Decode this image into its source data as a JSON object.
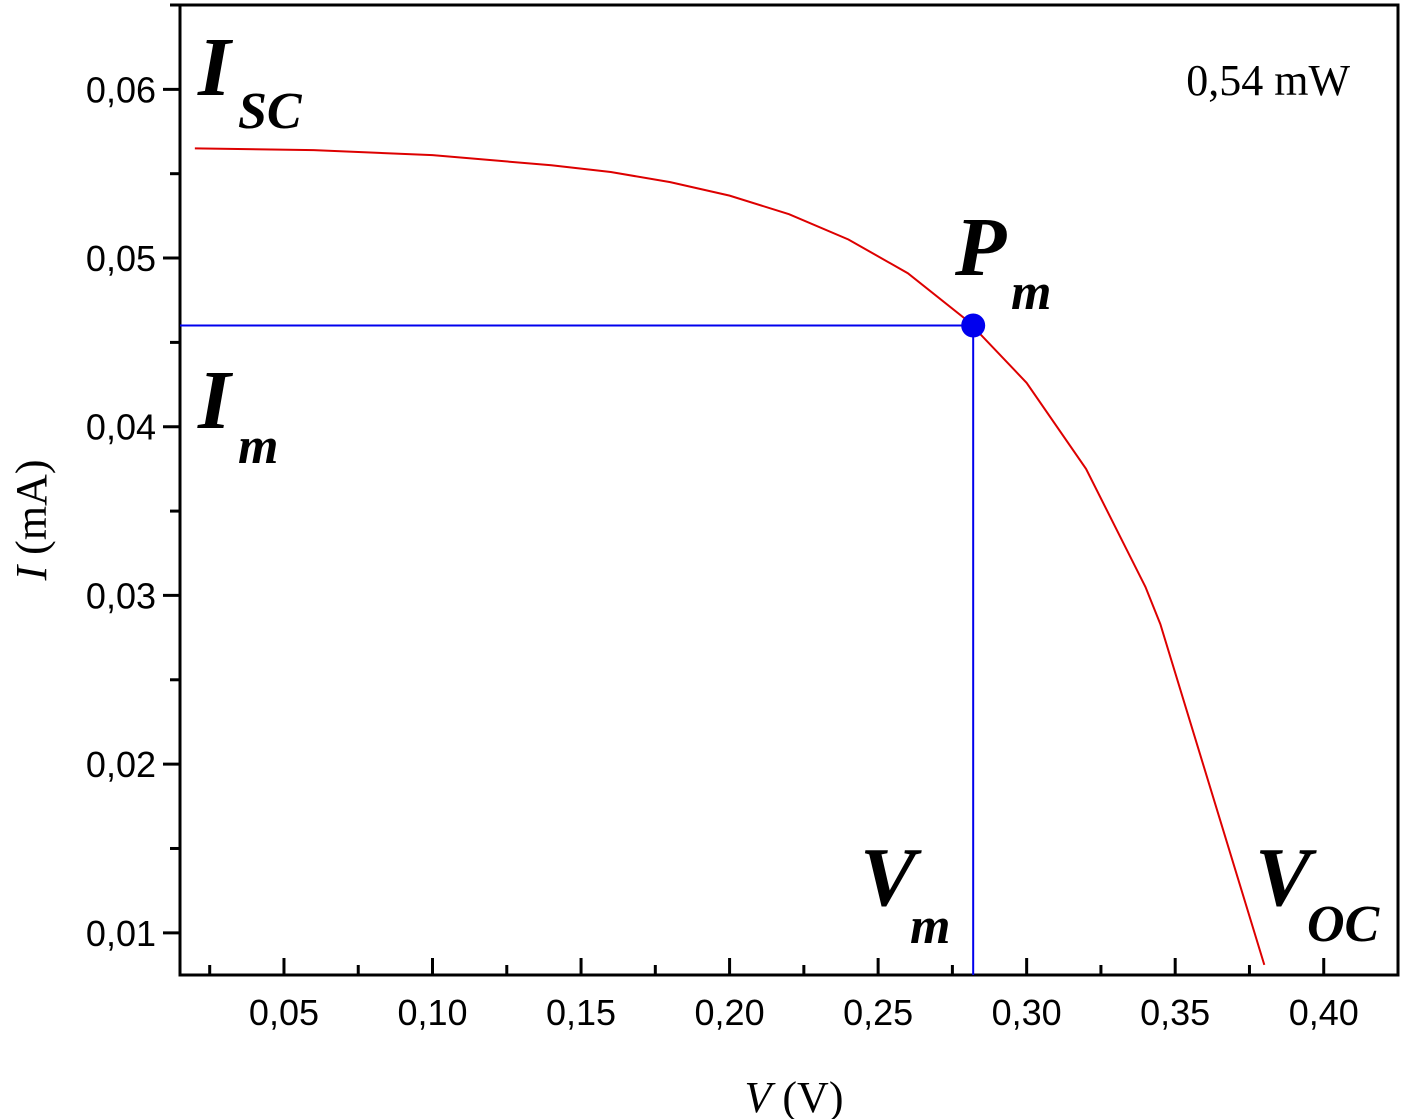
{
  "chart_data": {
    "type": "line",
    "x_label": {
      "symbol": "V",
      "unit": "(V)"
    },
    "y_label": {
      "symbol": "I",
      "unit": "(mA)"
    },
    "xlim": [
      0.015,
      0.425
    ],
    "ylim": [
      0.0075,
      0.065
    ],
    "xticks": [
      {
        "value": 0.05,
        "label": "0,05"
      },
      {
        "value": 0.1,
        "label": "0,10"
      },
      {
        "value": 0.15,
        "label": "0,15"
      },
      {
        "value": 0.2,
        "label": "0,20"
      },
      {
        "value": 0.25,
        "label": "0,25"
      },
      {
        "value": 0.3,
        "label": "0,30"
      },
      {
        "value": 0.35,
        "label": "0,35"
      },
      {
        "value": 0.4,
        "label": "0,40"
      }
    ],
    "xminorticks": [
      0.025,
      0.075,
      0.125,
      0.175,
      0.225,
      0.275,
      0.325,
      0.375,
      0.425
    ],
    "yticks": [
      {
        "value": 0.01,
        "label": "0,01"
      },
      {
        "value": 0.02,
        "label": "0,02"
      },
      {
        "value": 0.03,
        "label": "0,03"
      },
      {
        "value": 0.04,
        "label": "0,04"
      },
      {
        "value": 0.05,
        "label": "0,05"
      },
      {
        "value": 0.06,
        "label": "0,06"
      }
    ],
    "yminorticks": [
      0.015,
      0.025,
      0.035,
      0.045,
      0.055,
      0.065
    ],
    "series": [
      {
        "name": "I-V",
        "color": "#dd0000",
        "x": [
          0.02,
          0.06,
          0.1,
          0.14,
          0.16,
          0.18,
          0.2,
          0.22,
          0.24,
          0.26,
          0.28,
          0.3,
          0.32,
          0.34,
          0.345,
          0.38
        ],
        "values": [
          0.0565,
          0.0564,
          0.0561,
          0.0555,
          0.0551,
          0.0545,
          0.0537,
          0.0526,
          0.0511,
          0.0491,
          0.0463,
          0.0426,
          0.0375,
          0.0305,
          0.0283,
          0.0081
        ]
      }
    ],
    "max_power_point": {
      "x": 0.282,
      "y": 0.046,
      "color": "#0000ee"
    },
    "annotations": {
      "isc": {
        "main": "I",
        "sub": "SC"
      },
      "im": {
        "main": "I",
        "sub": "m"
      },
      "pm": {
        "main": "P",
        "sub": "m"
      },
      "vm": {
        "main": "V",
        "sub": "m"
      },
      "voc": {
        "main": "V",
        "sub": "OC"
      },
      "power": "0,54 mW"
    }
  }
}
